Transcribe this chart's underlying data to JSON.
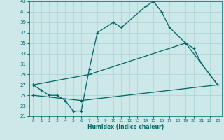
{
  "xlabel": "Humidex (Indice chaleur)",
  "bg_color": "#cce8e8",
  "line_color": "#006666",
  "grid_color": "#aad0d0",
  "xlim": [
    -0.5,
    23.5
  ],
  "ylim": [
    21,
    43
  ],
  "xticks": [
    0,
    1,
    2,
    3,
    4,
    5,
    6,
    7,
    8,
    9,
    10,
    11,
    12,
    13,
    14,
    15,
    16,
    17,
    18,
    19,
    20,
    21,
    22,
    23
  ],
  "yticks": [
    21,
    23,
    25,
    27,
    29,
    31,
    33,
    35,
    37,
    39,
    41,
    43
  ],
  "s1x": [
    0,
    1,
    2,
    3,
    4,
    5,
    6,
    7,
    8,
    10,
    11,
    14,
    15,
    16,
    17,
    19,
    20,
    21,
    23
  ],
  "s1y": [
    27,
    26,
    25,
    25,
    24,
    22,
    22,
    30,
    37,
    39,
    38,
    42,
    43,
    41,
    38,
    35,
    34,
    31,
    27
  ],
  "s2x": [
    0,
    7,
    19,
    23
  ],
  "s2y": [
    27,
    29,
    35,
    27
  ],
  "s3x": [
    0,
    6,
    23
  ],
  "s3y": [
    25,
    24,
    27
  ]
}
